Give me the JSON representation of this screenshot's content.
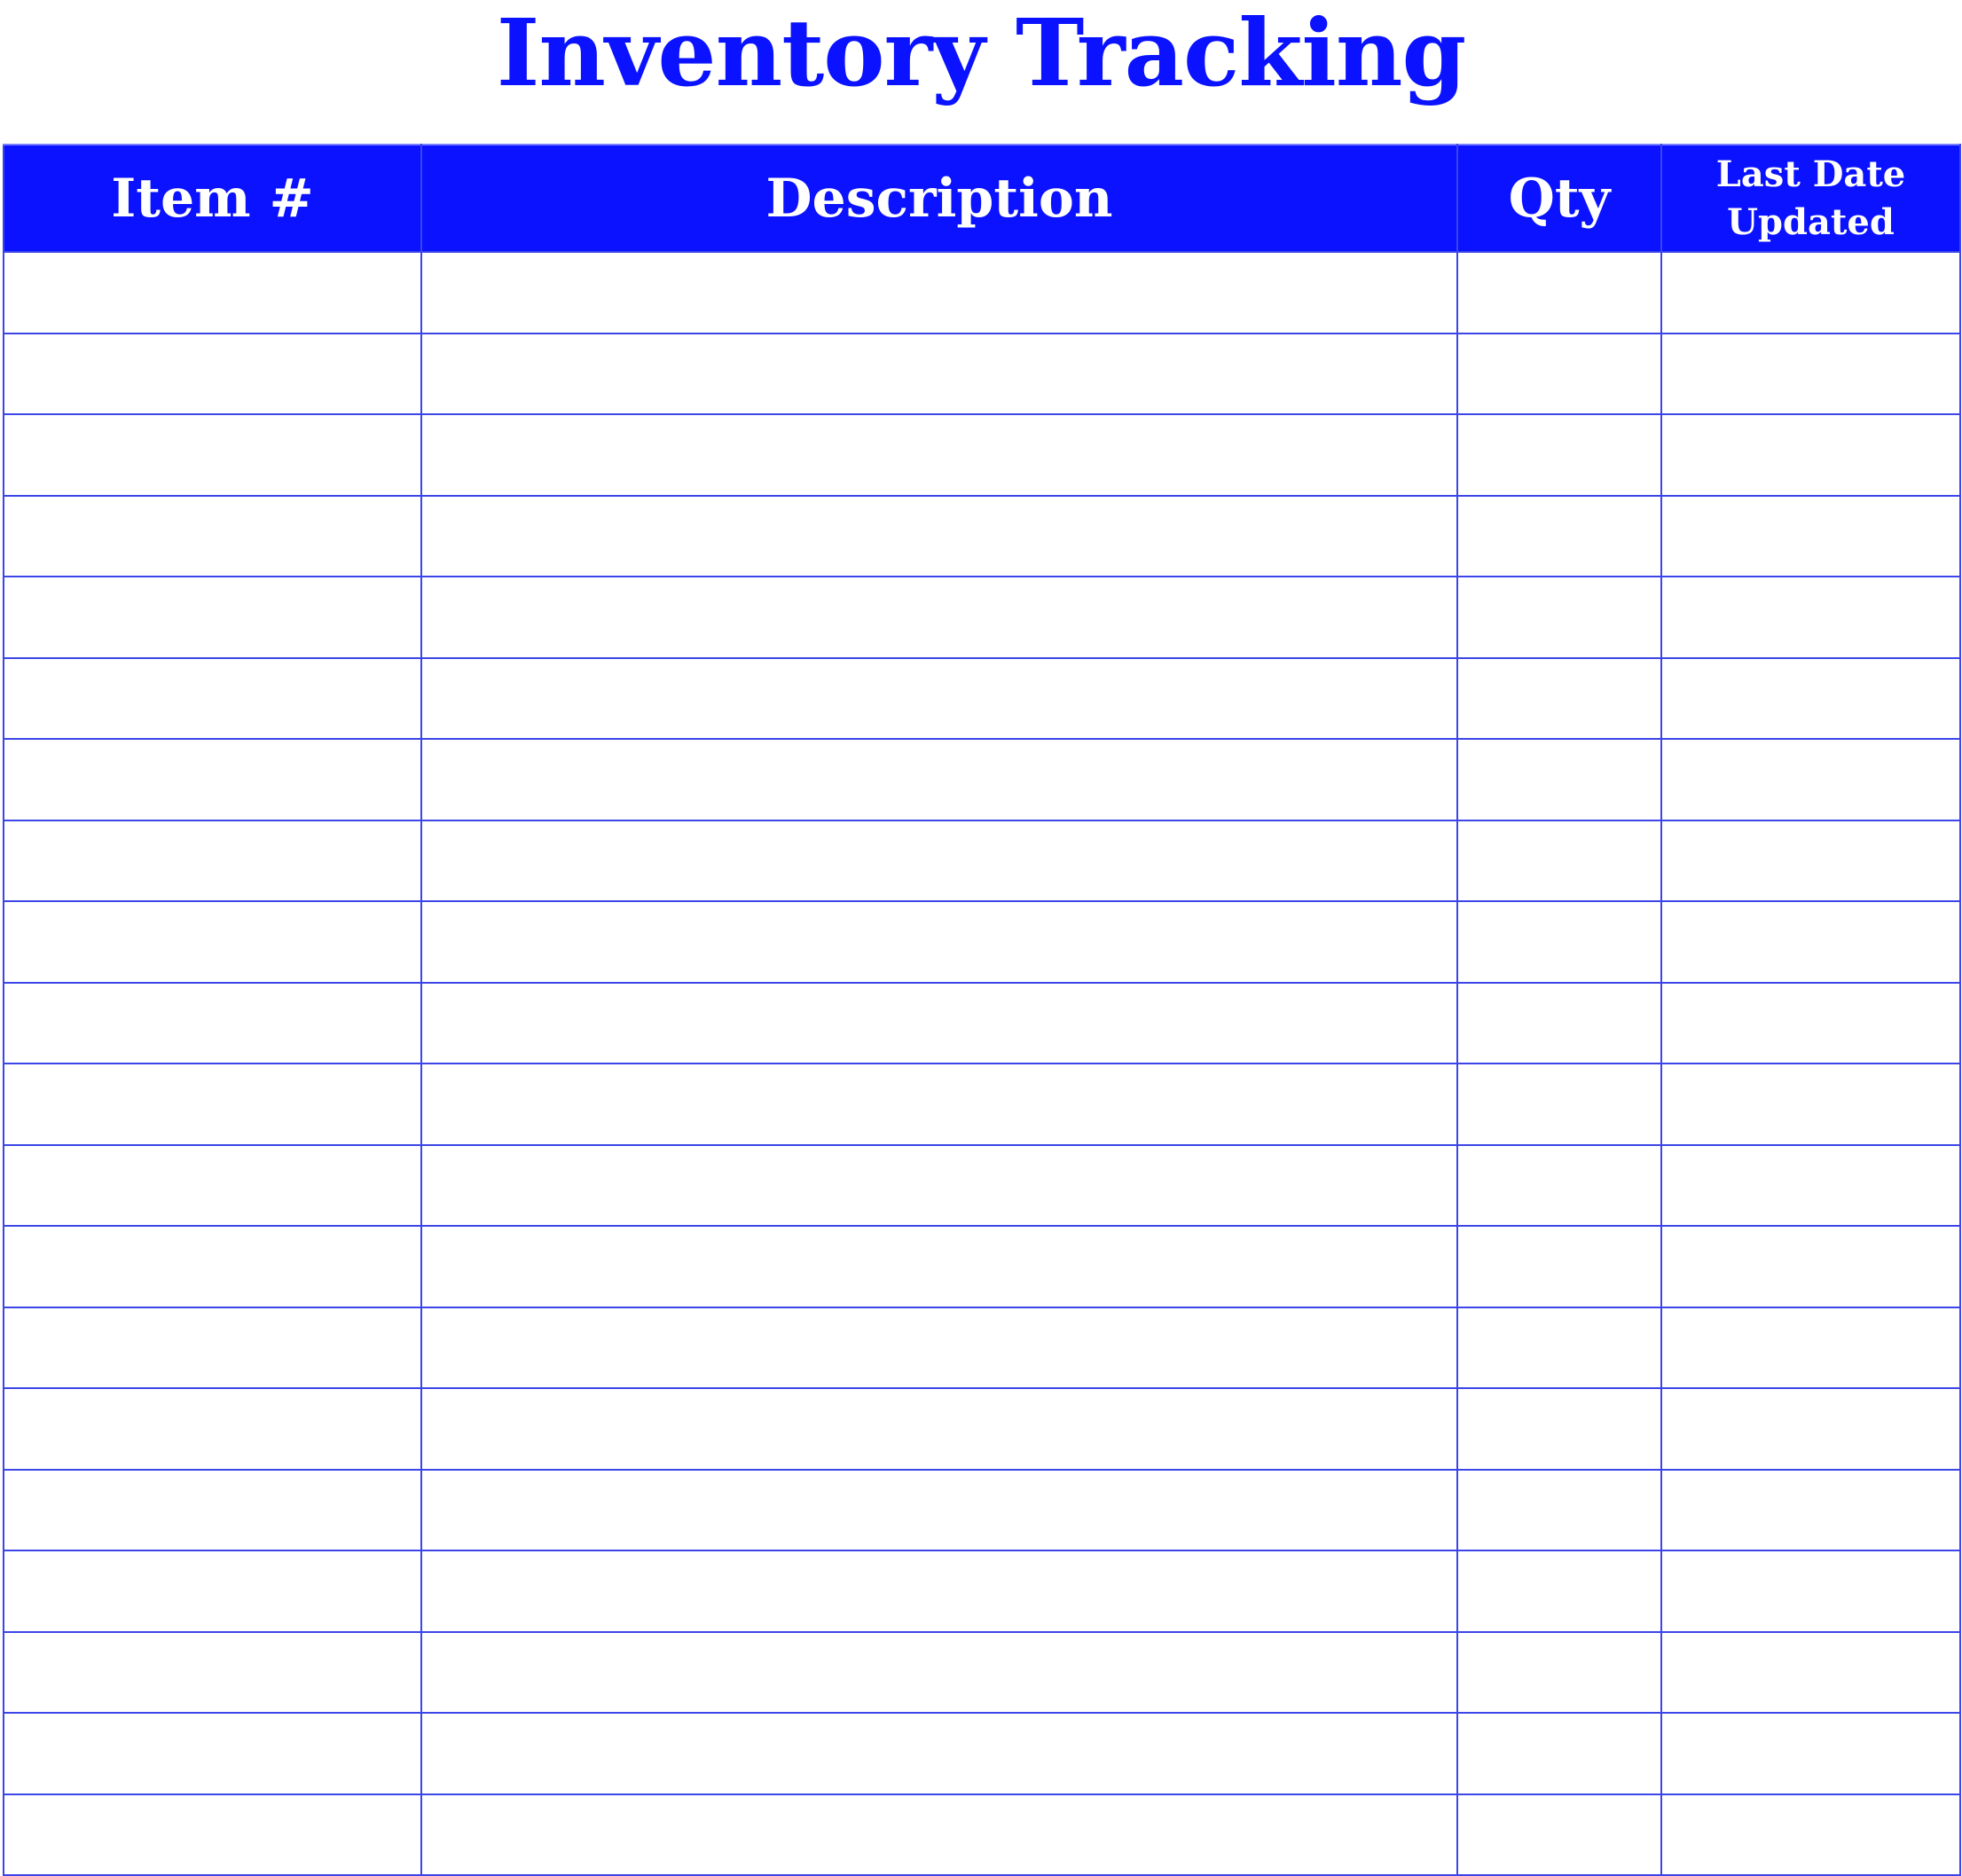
{
  "title": "Inventory Tracking",
  "colors": {
    "accent": "#0a12ff",
    "grid": "#3b45e8"
  },
  "columns": [
    "Item #",
    "Description",
    "Qty",
    "Last Date Updated"
  ],
  "columns_lines": {
    "last_date_line1": "Last Date",
    "last_date_line2": "Updated"
  },
  "rows": [
    [
      "",
      "",
      "",
      ""
    ],
    [
      "",
      "",
      "",
      ""
    ],
    [
      "",
      "",
      "",
      ""
    ],
    [
      "",
      "",
      "",
      ""
    ],
    [
      "",
      "",
      "",
      ""
    ],
    [
      "",
      "",
      "",
      ""
    ],
    [
      "",
      "",
      "",
      ""
    ],
    [
      "",
      "",
      "",
      ""
    ],
    [
      "",
      "",
      "",
      ""
    ],
    [
      "",
      "",
      "",
      ""
    ],
    [
      "",
      "",
      "",
      ""
    ],
    [
      "",
      "",
      "",
      ""
    ],
    [
      "",
      "",
      "",
      ""
    ],
    [
      "",
      "",
      "",
      ""
    ],
    [
      "",
      "",
      "",
      ""
    ],
    [
      "",
      "",
      "",
      ""
    ],
    [
      "",
      "",
      "",
      ""
    ],
    [
      "",
      "",
      "",
      ""
    ],
    [
      "",
      "",
      "",
      ""
    ],
    [
      "",
      "",
      "",
      ""
    ]
  ]
}
